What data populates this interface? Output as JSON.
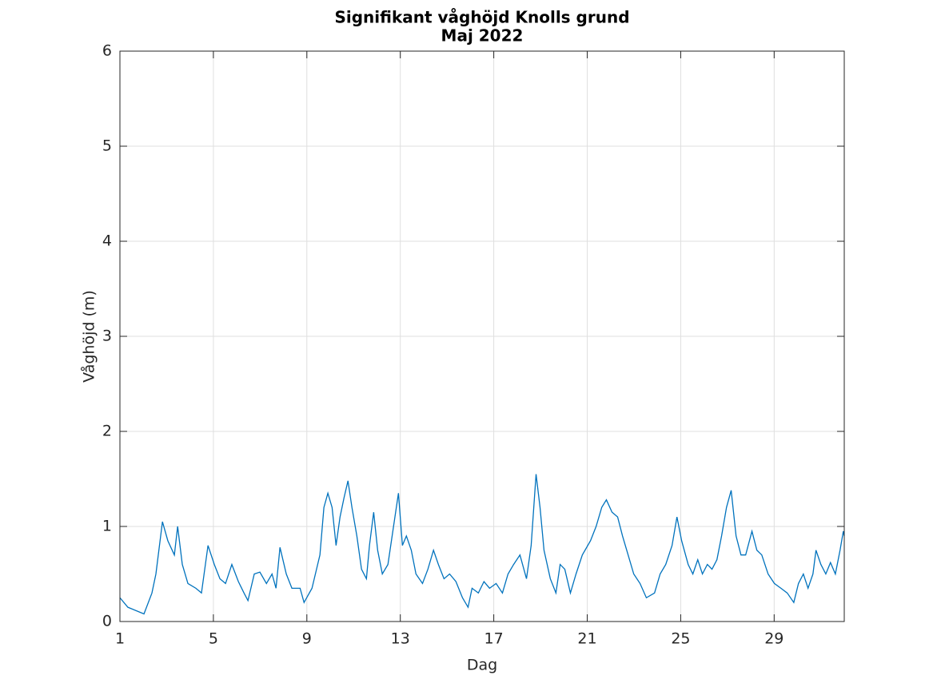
{
  "chart_data": {
    "type": "line",
    "title": "Signifikant våghöjd Knolls grund",
    "subtitle": "Maj 2022",
    "xlabel": "Dag",
    "ylabel": "Våghöjd (m)",
    "xlim": [
      1,
      32
    ],
    "xticks": [
      1,
      5,
      9,
      13,
      17,
      21,
      25,
      29
    ],
    "ylim": [
      0,
      6
    ],
    "yticks": [
      0,
      1,
      2,
      3,
      4,
      5,
      6
    ],
    "grid": true,
    "series": [
      {
        "name": "Våghöjd",
        "color": "#0072bd",
        "x": [
          1.0,
          1.34,
          2.03,
          2.37,
          2.54,
          2.82,
          3.05,
          3.33,
          3.47,
          3.67,
          3.91,
          4.25,
          4.49,
          4.77,
          5.04,
          5.28,
          5.52,
          5.79,
          6.07,
          6.31,
          6.48,
          6.75,
          6.99,
          7.27,
          7.51,
          7.68,
          7.85,
          8.12,
          8.36,
          8.71,
          8.88,
          9.22,
          9.56,
          9.73,
          9.9,
          10.08,
          10.25,
          10.42,
          10.59,
          10.76,
          10.93,
          11.14,
          11.34,
          11.55,
          11.68,
          11.86,
          12.03,
          12.23,
          12.47,
          12.71,
          12.92,
          13.09,
          13.26,
          13.47,
          13.67,
          13.95,
          14.18,
          14.42,
          14.63,
          14.87,
          15.11,
          15.38,
          15.66,
          15.9,
          16.07,
          16.34,
          16.58,
          16.82,
          17.1,
          17.37,
          17.61,
          17.85,
          18.12,
          18.4,
          18.6,
          18.81,
          18.98,
          19.15,
          19.42,
          19.66,
          19.84,
          20.04,
          20.28,
          20.52,
          20.79,
          21.14,
          21.38,
          21.62,
          21.82,
          22.06,
          22.3,
          22.51,
          22.75,
          22.99,
          23.26,
          23.53,
          23.88,
          24.12,
          24.36,
          24.63,
          24.84,
          25.04,
          25.32,
          25.52,
          25.73,
          25.93,
          26.14,
          26.34,
          26.55,
          26.75,
          26.96,
          27.16,
          27.37,
          27.58,
          27.78,
          28.05,
          28.26,
          28.47,
          28.74,
          29.01,
          29.29,
          29.56,
          29.84,
          30.04,
          30.25,
          30.45,
          30.66,
          30.79,
          31.0,
          31.21,
          31.41,
          31.62,
          31.82,
          31.96,
          32.0
        ],
        "values": [
          0.25,
          0.15,
          0.08,
          0.3,
          0.5,
          1.05,
          0.85,
          0.7,
          1.0,
          0.6,
          0.4,
          0.35,
          0.3,
          0.8,
          0.6,
          0.45,
          0.4,
          0.6,
          0.42,
          0.3,
          0.22,
          0.5,
          0.52,
          0.4,
          0.5,
          0.35,
          0.78,
          0.5,
          0.35,
          0.35,
          0.2,
          0.35,
          0.7,
          1.2,
          1.35,
          1.2,
          0.8,
          1.1,
          1.3,
          1.48,
          1.2,
          0.9,
          0.55,
          0.45,
          0.8,
          1.15,
          0.75,
          0.5,
          0.6,
          1.0,
          1.35,
          0.8,
          0.9,
          0.75,
          0.5,
          0.4,
          0.55,
          0.75,
          0.6,
          0.45,
          0.5,
          0.42,
          0.25,
          0.15,
          0.35,
          0.3,
          0.42,
          0.35,
          0.4,
          0.3,
          0.5,
          0.6,
          0.7,
          0.45,
          0.8,
          1.55,
          1.2,
          0.75,
          0.45,
          0.3,
          0.6,
          0.55,
          0.3,
          0.5,
          0.7,
          0.85,
          1.0,
          1.2,
          1.28,
          1.15,
          1.1,
          0.9,
          0.7,
          0.5,
          0.4,
          0.25,
          0.3,
          0.5,
          0.6,
          0.8,
          1.1,
          0.85,
          0.6,
          0.5,
          0.65,
          0.5,
          0.6,
          0.55,
          0.65,
          0.9,
          1.2,
          1.38,
          0.9,
          0.7,
          0.7,
          0.95,
          0.75,
          0.7,
          0.5,
          0.4,
          0.35,
          0.3,
          0.2,
          0.4,
          0.5,
          0.35,
          0.5,
          0.75,
          0.6,
          0.5,
          0.62,
          0.5,
          0.75,
          0.95,
          0.9
        ]
      }
    ]
  }
}
